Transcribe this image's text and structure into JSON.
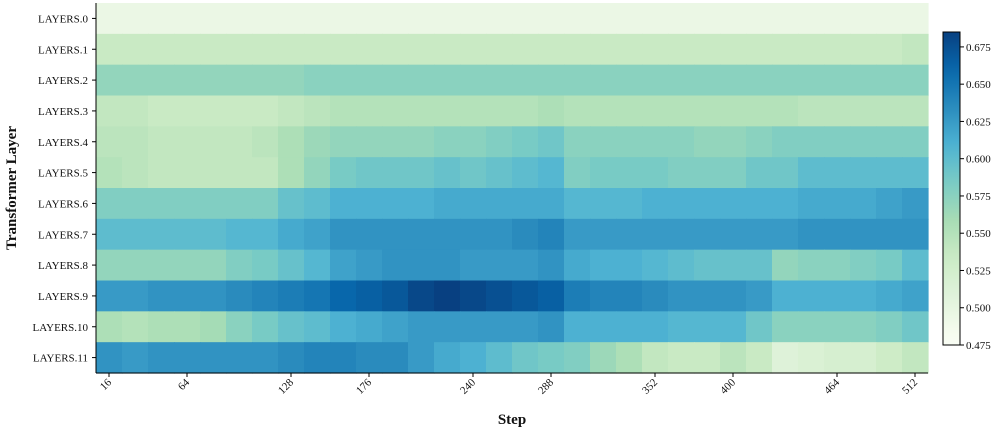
{
  "chart_data": {
    "type": "heatmap",
    "xlabel": "Step",
    "ylabel": "Transformer Layer",
    "y_categories": [
      "LAYERS.0",
      "LAYERS.1",
      "LAYERS.2",
      "LAYERS.3",
      "LAYERS.4",
      "LAYERS.5",
      "LAYERS.6",
      "LAYERS.7",
      "LAYERS.8",
      "LAYERS.9",
      "LAYERS.10",
      "LAYERS.11"
    ],
    "x_steps": [
      16,
      32,
      48,
      64,
      80,
      96,
      112,
      128,
      144,
      160,
      176,
      192,
      208,
      224,
      240,
      256,
      272,
      288,
      304,
      320,
      336,
      352,
      368,
      384,
      400,
      416,
      432,
      448,
      464,
      480,
      496,
      512
    ],
    "x_tick_labels": [
      16,
      64,
      128,
      176,
      240,
      288,
      352,
      400,
      464,
      512
    ],
    "colorbar": {
      "min": 0.475,
      "max": 0.685,
      "ticks": [
        "0.475",
        "0.500",
        "0.525",
        "0.550",
        "0.575",
        "0.600",
        "0.625",
        "0.650",
        "0.675"
      ],
      "colormap": "GnBu"
    },
    "values": [
      [
        0.495,
        0.495,
        0.495,
        0.495,
        0.495,
        0.495,
        0.495,
        0.495,
        0.495,
        0.495,
        0.495,
        0.495,
        0.495,
        0.495,
        0.495,
        0.495,
        0.495,
        0.495,
        0.495,
        0.495,
        0.495,
        0.495,
        0.495,
        0.495,
        0.495,
        0.495,
        0.495,
        0.495,
        0.495,
        0.495,
        0.495,
        0.495
      ],
      [
        0.535,
        0.535,
        0.535,
        0.535,
        0.535,
        0.535,
        0.535,
        0.535,
        0.535,
        0.535,
        0.535,
        0.535,
        0.535,
        0.535,
        0.535,
        0.535,
        0.535,
        0.535,
        0.535,
        0.535,
        0.535,
        0.535,
        0.535,
        0.535,
        0.535,
        0.535,
        0.535,
        0.535,
        0.535,
        0.535,
        0.535,
        0.54
      ],
      [
        0.57,
        0.57,
        0.57,
        0.57,
        0.57,
        0.57,
        0.57,
        0.57,
        0.575,
        0.575,
        0.575,
        0.575,
        0.575,
        0.575,
        0.575,
        0.575,
        0.575,
        0.575,
        0.575,
        0.575,
        0.575,
        0.575,
        0.575,
        0.575,
        0.575,
        0.575,
        0.575,
        0.575,
        0.575,
        0.575,
        0.575,
        0.575
      ],
      [
        0.54,
        0.54,
        0.535,
        0.535,
        0.535,
        0.535,
        0.535,
        0.54,
        0.545,
        0.55,
        0.55,
        0.55,
        0.55,
        0.55,
        0.55,
        0.55,
        0.55,
        0.555,
        0.55,
        0.55,
        0.55,
        0.55,
        0.55,
        0.55,
        0.55,
        0.55,
        0.55,
        0.545,
        0.545,
        0.545,
        0.545,
        0.545
      ],
      [
        0.545,
        0.545,
        0.54,
        0.54,
        0.54,
        0.54,
        0.545,
        0.555,
        0.565,
        0.57,
        0.57,
        0.57,
        0.57,
        0.575,
        0.575,
        0.58,
        0.585,
        0.59,
        0.575,
        0.575,
        0.575,
        0.575,
        0.575,
        0.57,
        0.57,
        0.575,
        0.58,
        0.58,
        0.58,
        0.58,
        0.58,
        0.58
      ],
      [
        0.55,
        0.545,
        0.54,
        0.54,
        0.54,
        0.54,
        0.54,
        0.555,
        0.57,
        0.585,
        0.59,
        0.59,
        0.59,
        0.595,
        0.59,
        0.595,
        0.6,
        0.605,
        0.58,
        0.585,
        0.585,
        0.585,
        0.58,
        0.58,
        0.58,
        0.59,
        0.59,
        0.6,
        0.6,
        0.6,
        0.6,
        0.6
      ],
      [
        0.58,
        0.58,
        0.58,
        0.58,
        0.58,
        0.58,
        0.58,
        0.595,
        0.6,
        0.61,
        0.61,
        0.61,
        0.61,
        0.615,
        0.615,
        0.615,
        0.615,
        0.615,
        0.605,
        0.605,
        0.605,
        0.61,
        0.61,
        0.61,
        0.61,
        0.61,
        0.61,
        0.615,
        0.615,
        0.615,
        0.62,
        0.625
      ],
      [
        0.6,
        0.6,
        0.6,
        0.6,
        0.6,
        0.605,
        0.605,
        0.615,
        0.62,
        0.63,
        0.63,
        0.63,
        0.63,
        0.63,
        0.63,
        0.63,
        0.635,
        0.64,
        0.625,
        0.625,
        0.625,
        0.625,
        0.625,
        0.625,
        0.625,
        0.625,
        0.625,
        0.63,
        0.63,
        0.63,
        0.63,
        0.63
      ],
      [
        0.57,
        0.57,
        0.57,
        0.57,
        0.57,
        0.58,
        0.585,
        0.595,
        0.605,
        0.62,
        0.625,
        0.63,
        0.63,
        0.63,
        0.625,
        0.625,
        0.625,
        0.63,
        0.615,
        0.61,
        0.61,
        0.605,
        0.6,
        0.595,
        0.595,
        0.595,
        0.57,
        0.575,
        0.575,
        0.58,
        0.585,
        0.6
      ],
      [
        0.625,
        0.625,
        0.63,
        0.63,
        0.63,
        0.635,
        0.64,
        0.645,
        0.65,
        0.66,
        0.665,
        0.67,
        0.68,
        0.685,
        0.68,
        0.675,
        0.67,
        0.665,
        0.645,
        0.64,
        0.64,
        0.635,
        0.63,
        0.63,
        0.63,
        0.625,
        0.61,
        0.61,
        0.61,
        0.61,
        0.615,
        0.62
      ],
      [
        0.555,
        0.55,
        0.555,
        0.555,
        0.56,
        0.575,
        0.585,
        0.595,
        0.6,
        0.61,
        0.615,
        0.62,
        0.625,
        0.625,
        0.625,
        0.625,
        0.625,
        0.63,
        0.61,
        0.61,
        0.61,
        0.61,
        0.605,
        0.605,
        0.605,
        0.59,
        0.575,
        0.575,
        0.575,
        0.575,
        0.58,
        0.59
      ],
      [
        0.63,
        0.625,
        0.63,
        0.63,
        0.63,
        0.63,
        0.63,
        0.635,
        0.64,
        0.64,
        0.635,
        0.635,
        0.625,
        0.615,
        0.61,
        0.6,
        0.59,
        0.585,
        0.58,
        0.565,
        0.555,
        0.54,
        0.535,
        0.535,
        0.545,
        0.535,
        0.51,
        0.515,
        0.52,
        0.52,
        0.53,
        0.54
      ]
    ]
  }
}
